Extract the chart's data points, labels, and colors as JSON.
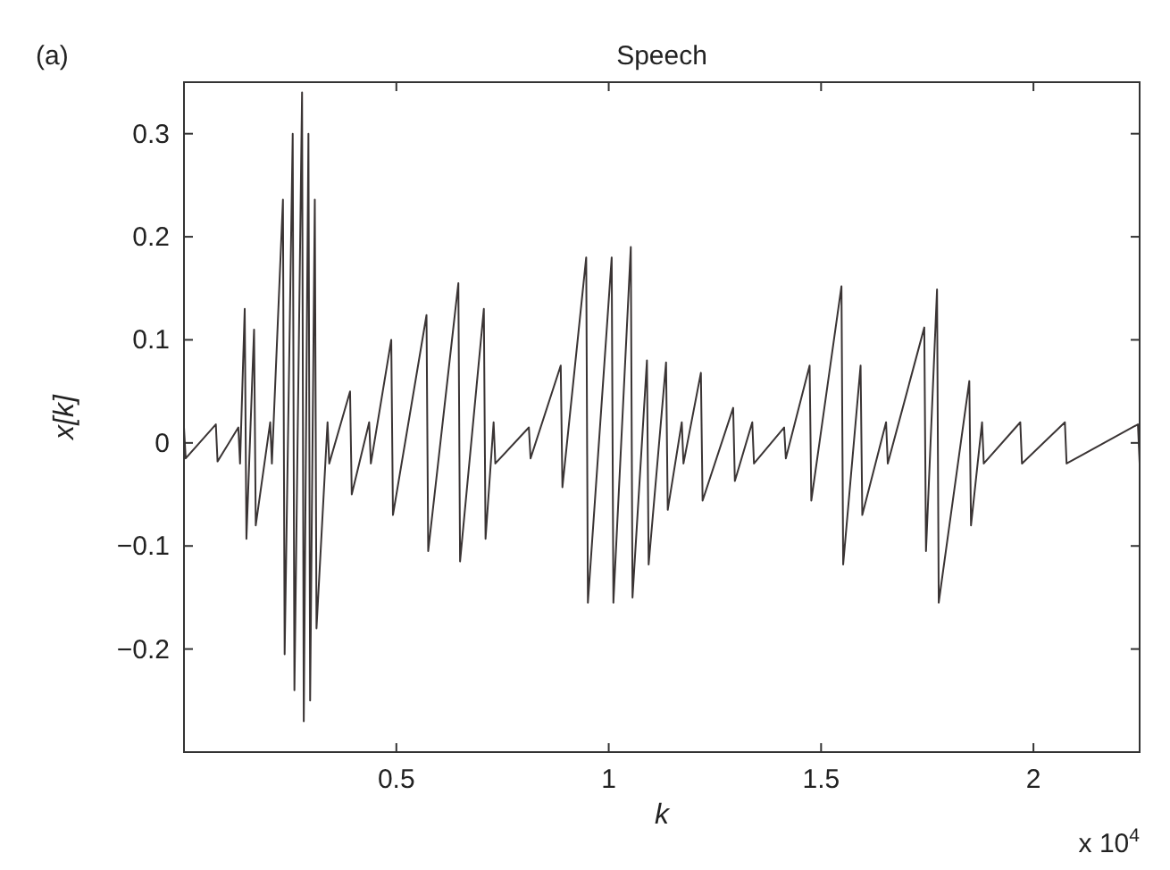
{
  "chart_data": {
    "type": "line",
    "title": "Speech",
    "xlabel": "k",
    "ylabel": "x[k]",
    "annotations": [
      "(a)",
      "x 10$^{4}$"
    ],
    "xlim": [
      0,
      2.25
    ],
    "ylim": [
      -0.3,
      0.35
    ],
    "xticks": [
      0.5,
      1,
      1.5,
      2
    ],
    "yticks": [
      -0.2,
      -0.1,
      0,
      0.1,
      0.2,
      0.3
    ],
    "grid": false,
    "line_style": "solid",
    "series": [
      {
        "color": "#3a3434",
        "x": [
          0,
          0.004,
          0.075,
          0.079,
          0.128,
          0.132,
          0.143,
          0.147,
          0.165,
          0.169,
          0.203,
          0.207,
          0.233,
          0.237,
          0.256,
          0.26,
          0.278,
          0.282,
          0.293,
          0.297,
          0.308,
          0.312,
          0.338,
          0.342,
          0.391,
          0.395,
          0.436,
          0.44,
          0.488,
          0.492,
          0.571,
          0.575,
          0.646,
          0.65,
          0.706,
          0.71,
          0.729,
          0.733,
          0.812,
          0.816,
          0.887,
          0.891,
          0.947,
          0.951,
          1.007,
          1.011,
          1.052,
          1.056,
          1.09,
          1.094,
          1.135,
          1.139,
          1.172,
          1.176,
          1.217,
          1.221,
          1.293,
          1.297,
          1.338,
          1.342,
          1.413,
          1.417,
          1.473,
          1.477,
          1.548,
          1.552,
          1.593,
          1.597,
          1.653,
          1.657,
          1.743,
          1.747,
          1.773,
          1.777,
          1.849,
          1.853,
          1.879,
          1.883,
          1.969,
          1.973,
          2.074,
          2.078,
          2.246,
          2.25
        ],
        "values": [
          0.015,
          -0.015,
          0.018,
          -0.018,
          0.015,
          -0.02,
          0.13,
          -0.093,
          0.11,
          -0.08,
          0.02,
          -0.02,
          0.236,
          -0.205,
          0.3,
          -0.24,
          0.34,
          -0.27,
          0.3,
          -0.25,
          0.236,
          -0.18,
          0.02,
          -0.02,
          0.05,
          -0.05,
          0.02,
          -0.02,
          0.1,
          -0.07,
          0.124,
          -0.105,
          0.155,
          -0.115,
          0.13,
          -0.093,
          0.02,
          -0.02,
          0.015,
          -0.015,
          0.075,
          -0.043,
          0.18,
          -0.155,
          0.18,
          -0.155,
          0.19,
          -0.15,
          0.08,
          -0.118,
          0.078,
          -0.065,
          0.02,
          -0.02,
          0.068,
          -0.056,
          0.034,
          -0.037,
          0.02,
          -0.02,
          0.015,
          -0.015,
          0.075,
          -0.056,
          0.152,
          -0.118,
          0.075,
          -0.07,
          0.02,
          -0.02,
          0.112,
          -0.105,
          0.149,
          -0.155,
          0.06,
          -0.08,
          0.02,
          -0.02,
          0.02,
          -0.02,
          0.02,
          -0.02,
          0.018,
          -0.02
        ]
      }
    ]
  }
}
